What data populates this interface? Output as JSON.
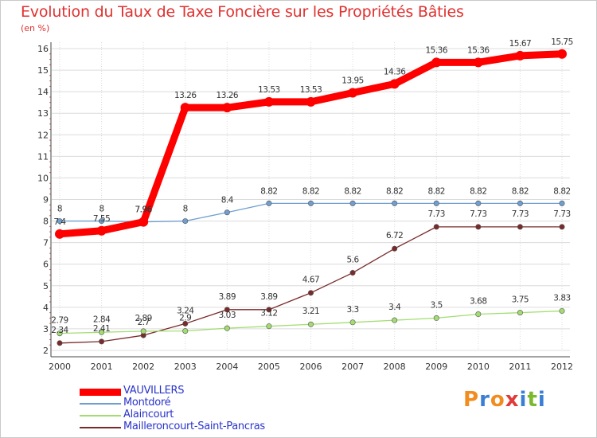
{
  "title": "Evolution du Taux de Taxe Foncière sur les Propriétés Bâties",
  "unit_label": "(en %)",
  "logo": {
    "letters": [
      "P",
      "r",
      "o",
      "x",
      "i",
      "t",
      "i"
    ],
    "colors": [
      "#f28c1e",
      "#3a7fd5",
      "#f28c1e",
      "#e03a3a",
      "#3a7fd5",
      "#7ab82e",
      "#3a7fd5"
    ]
  },
  "chart_data": {
    "type": "line",
    "x": [
      "2000",
      "2001",
      "2002",
      "2003",
      "2004",
      "2005",
      "2006",
      "2007",
      "2008",
      "2009",
      "2010",
      "2011",
      "2012"
    ],
    "ylim": [
      2,
      16
    ],
    "yticks": [
      "2",
      "3",
      "4",
      "5",
      "6",
      "7",
      "8",
      "9",
      "10",
      "11",
      "12",
      "13",
      "14",
      "15",
      "16"
    ],
    "grid": true,
    "legend_position": "bottom-left",
    "series": [
      {
        "name": "VAUVILLERS",
        "color": "#ff0000",
        "values": [
          7.4,
          7.55,
          7.96,
          13.26,
          13.26,
          13.53,
          13.53,
          13.95,
          14.36,
          15.36,
          15.36,
          15.67,
          15.75
        ],
        "labels": [
          "7.4",
          "7.55",
          "7.96",
          "13.26",
          "13.26",
          "13.53",
          "13.53",
          "13.95",
          "14.36",
          "15.36",
          "15.36",
          "15.67",
          "15.75"
        ]
      },
      {
        "name": "Montdoré",
        "color": "#6f9fd0",
        "values": [
          8,
          8,
          7.96,
          8,
          8.4,
          8.82,
          8.82,
          8.82,
          8.82,
          8.82,
          8.82,
          8.82,
          8.82
        ],
        "labels": [
          "8",
          "8",
          "7.96",
          "8",
          "8.4",
          "8.82",
          "8.82",
          "8.82",
          "8.82",
          "8.82",
          "8.82",
          "8.82",
          "8.82"
        ]
      },
      {
        "name": "Alaincourt",
        "color": "#a3dd72",
        "values": [
          2.79,
          2.84,
          2.89,
          2.9,
          3.03,
          3.12,
          3.21,
          3.3,
          3.4,
          3.5,
          3.68,
          3.75,
          3.83
        ],
        "labels": [
          "2.79",
          "2.84",
          "2.89",
          "2.9",
          "3.03",
          "3.12",
          "3.21",
          "3.3",
          "3.4",
          "3.5",
          "3.68",
          "3.75",
          "3.83"
        ]
      },
      {
        "name": "Mailleroncourt-Saint-Pancras",
        "color": "#7a2a2a",
        "values": [
          2.34,
          2.41,
          2.7,
          3.24,
          3.89,
          3.89,
          4.67,
          5.6,
          6.72,
          7.73,
          7.73,
          7.73,
          7.73
        ],
        "labels": [
          "2.34",
          "2.41",
          "2.7",
          "3.24",
          "3.89",
          "3.89",
          "4.67",
          "5.6",
          "6.72",
          "7.73",
          "7.73",
          "7.73",
          "7.73"
        ]
      }
    ]
  }
}
